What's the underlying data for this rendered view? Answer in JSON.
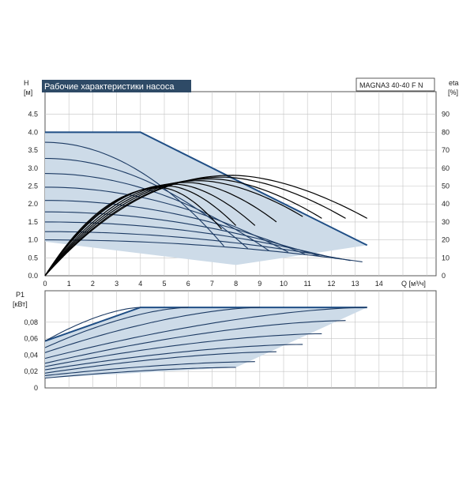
{
  "title": "Рабочие характеристики насоса",
  "model": "MAGNA3 40-40 F N",
  "colors": {
    "title_bg": "#2e4a66",
    "area_fill": "#cddbe8",
    "envelope": "#1f4e85",
    "curve_blue": "#1c3a63",
    "curve_black": "#000000",
    "grid": "#c4c4c4",
    "frame": "#555555"
  },
  "chart_data": [
    {
      "type": "line",
      "name": "head-chart",
      "ylabel": "H",
      "yunit": "[м]",
      "y2label": "eta",
      "y2unit": "[%]",
      "xlabel": "Q [м³/ч]",
      "xlim": [
        0,
        16
      ],
      "ylim": [
        0,
        5
      ],
      "y2lim": [
        0,
        100
      ],
      "xticks": [
        "0",
        "1",
        "2",
        "3",
        "4",
        "5",
        "6",
        "7",
        "8",
        "9",
        "10",
        "11",
        "12",
        "13",
        "14"
      ],
      "yticks": [
        "0.0",
        "0.5",
        "1.0",
        "1.5",
        "2.0",
        "2.5",
        "3.0",
        "3.5",
        "4.0",
        "4.5"
      ],
      "y2ticks": [
        "0",
        "10",
        "20",
        "30",
        "40",
        "50",
        "60",
        "70",
        "80",
        "90"
      ],
      "envelope": [
        [
          0,
          4.0
        ],
        [
          4.0,
          4.0
        ],
        [
          13.5,
          0.85
        ],
        [
          8.0,
          0.3
        ],
        [
          0,
          0.95
        ]
      ],
      "head_curves": [
        {
          "h0": 3.72,
          "qmax": 8.5,
          "q_end": 7.5
        },
        {
          "h0": 3.27,
          "qmax": 9.7,
          "q_end": 8.5
        },
        {
          "h0": 2.85,
          "qmax": 10.8,
          "q_end": 9.4
        },
        {
          "h0": 2.47,
          "qmax": 11.9,
          "q_end": 10.2
        },
        {
          "h0": 2.1,
          "qmax": 12.9,
          "q_end": 10.9
        },
        {
          "h0": 1.78,
          "qmax": 13.8,
          "q_end": 11.5
        },
        {
          "h0": 1.5,
          "qmax": 14.8,
          "q_end": 12.2
        },
        {
          "h0": 1.23,
          "qmax": 15.8,
          "q_end": 12.8
        },
        {
          "h0": 1.0,
          "qmax": 17.0,
          "q_end": 13.3
        }
      ],
      "efficiency_curves": [
        {
          "peak_q": 7.9,
          "peak_eta": 56,
          "q_end": 13.5,
          "eta_end": 32
        },
        {
          "peak_q": 7.5,
          "peak_eta": 55,
          "q_end": 12.6,
          "eta_end": 32
        },
        {
          "peak_q": 7.0,
          "peak_eta": 54,
          "q_end": 11.6,
          "eta_end": 32
        },
        {
          "peak_q": 6.5,
          "peak_eta": 53,
          "q_end": 10.8,
          "eta_end": 33
        },
        {
          "peak_q": 6.0,
          "peak_eta": 52,
          "q_end": 9.7,
          "eta_end": 30
        },
        {
          "peak_q": 5.5,
          "peak_eta": 51,
          "q_end": 8.8,
          "eta_end": 28
        },
        {
          "peak_q": 5.2,
          "peak_eta": 50,
          "q_end": 8.0,
          "eta_end": 28
        },
        {
          "peak_q": 4.9,
          "peak_eta": 49,
          "q_end": 7.4,
          "eta_end": 26
        }
      ]
    },
    {
      "type": "line",
      "name": "power-chart",
      "ylabel": "P1",
      "yunit": "[кВт]",
      "xlim": [
        0,
        16
      ],
      "ylim": [
        0,
        0.1
      ],
      "yticks": [
        "0",
        "0,02",
        "0,04",
        "0,06",
        "0,08"
      ],
      "envelope": [
        [
          0,
          0.057
        ],
        [
          4.0,
          0.098
        ],
        [
          13.5,
          0.098
        ],
        [
          8.0,
          0.025
        ],
        [
          0,
          0.012
        ]
      ],
      "power_curves": [
        {
          "p0": 0.057,
          "p_end": 0.098,
          "q_end": 4.0
        },
        {
          "p0": 0.049,
          "p_end": 0.098,
          "q_end": 6.0
        },
        {
          "p0": 0.043,
          "p_end": 0.098,
          "q_end": 9.0
        },
        {
          "p0": 0.036,
          "p_end": 0.098,
          "q_end": 13.5
        },
        {
          "p0": 0.03,
          "p_end": 0.082,
          "q_end": 12.6
        },
        {
          "p0": 0.026,
          "p_end": 0.066,
          "q_end": 11.6
        },
        {
          "p0": 0.022,
          "p_end": 0.053,
          "q_end": 10.8
        },
        {
          "p0": 0.018,
          "p_end": 0.044,
          "q_end": 9.7
        },
        {
          "p0": 0.015,
          "p_end": 0.032,
          "q_end": 8.8
        },
        {
          "p0": 0.012,
          "p_end": 0.025,
          "q_end": 8.0
        }
      ]
    }
  ]
}
